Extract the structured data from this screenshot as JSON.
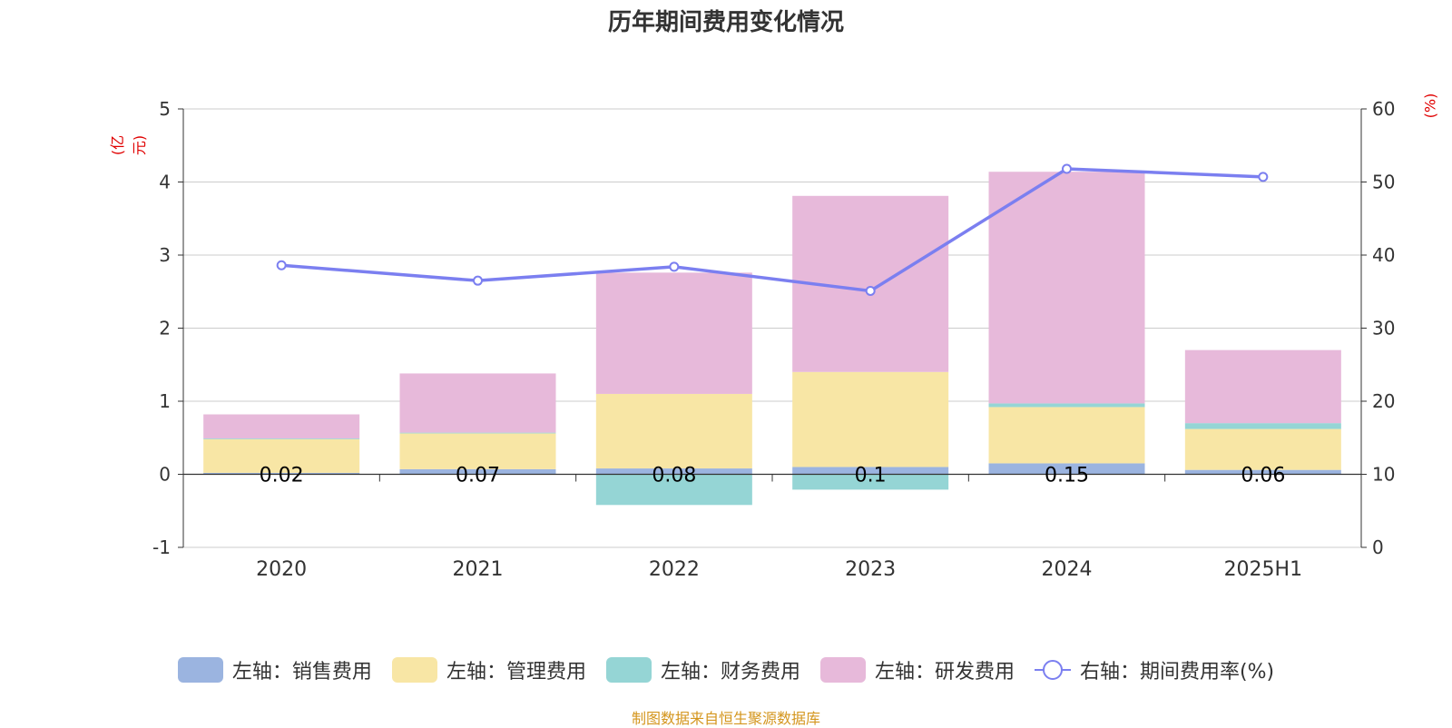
{
  "title": "历年期间费用变化情况",
  "left_unit": "(亿元)",
  "right_unit": "(%)",
  "source": "制图数据来自恒生聚源数据库",
  "chart_data": {
    "type": "bar",
    "stacked": true,
    "title": "历年期间费用变化情况",
    "categories": [
      "2020",
      "2021",
      "2022",
      "2023",
      "2024",
      "2025H1"
    ],
    "left_axis": {
      "label": "(亿元)",
      "ylim": [
        -1,
        5
      ],
      "ticks": [
        "-1",
        "0",
        "1",
        "2",
        "3",
        "4",
        "5"
      ]
    },
    "right_axis": {
      "label": "(%)",
      "ylim": [
        0,
        60
      ],
      "ticks": [
        "0",
        "10",
        "20",
        "30",
        "40",
        "50",
        "60"
      ]
    },
    "grid": true,
    "legend_position": "bottom",
    "series": [
      {
        "name": "左轴：销售费用",
        "type": "bar",
        "axis": "left",
        "color": "#9bb4e0",
        "values": [
          0.02,
          0.07,
          0.08,
          0.1,
          0.15,
          0.06
        ]
      },
      {
        "name": "左轴：管理费用",
        "type": "bar",
        "axis": "left",
        "color": "#f8e6a5",
        "values": [
          0.46,
          0.49,
          1.02,
          1.3,
          0.77,
          0.56
        ]
      },
      {
        "name": "左轴：财务费用",
        "type": "bar",
        "axis": "left",
        "color": "#95d5d5",
        "values": [
          0.01,
          0.01,
          -0.42,
          -0.21,
          0.05,
          0.08
        ]
      },
      {
        "name": "左轴：研发费用",
        "type": "bar",
        "axis": "left",
        "color": "#e7b9da",
        "values": [
          0.33,
          0.81,
          1.66,
          2.41,
          3.17,
          1.0
        ]
      },
      {
        "name": "右轴：期间费用率(%)",
        "type": "line",
        "axis": "right",
        "color": "#7b7ff0",
        "values": [
          38.6,
          36.5,
          38.4,
          35.1,
          51.8,
          50.7
        ]
      }
    ],
    "data_labels": [
      "0.02",
      "0.07",
      "0.08",
      "0.1",
      "0.15",
      "0.06"
    ]
  }
}
